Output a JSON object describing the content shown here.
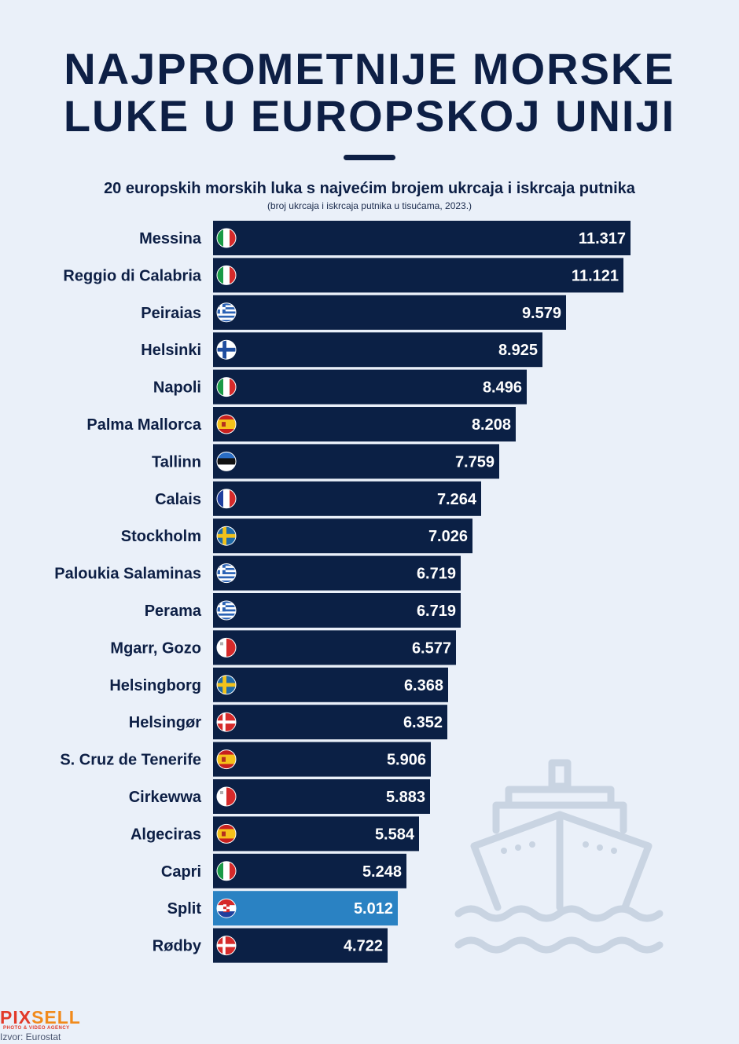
{
  "title": {
    "line1": "NAJPROMETNIJE MORSKE",
    "line2": "LUKE U EUROPSKOJ UNIJI"
  },
  "subtitle": "20 europskih morskih luka s najvećim brojem ukrcaja i iskrcaja putnika",
  "note": "(broj ukrcaja i iskrcaja putnika u tisućama, 2023.)",
  "logo": {
    "part1": "PIX",
    "part2": "SELL",
    "tagline": "PHOTO & VIDEO AGENCY"
  },
  "source": "Izvor: Eurostat",
  "colors": {
    "bar": "#0b2045",
    "highlight": "#2a82c3",
    "ship": "#c9d4e2"
  },
  "chart_data": {
    "type": "bar",
    "orientation": "horizontal",
    "categories": [
      "Messina",
      "Reggio di Calabria",
      "Peiraias",
      "Helsinki",
      "Napoli",
      "Palma Mallorca",
      "Tallinn",
      "Calais",
      "Stockholm",
      "Paloukia Salaminas",
      "Perama",
      "Mgarr, Gozo",
      "Helsingborg",
      "Helsingør",
      "S. Cruz de Tenerife",
      "Cirkewwa",
      "Algeciras",
      "Capri",
      "Split",
      "Rødby"
    ],
    "values": [
      11317,
      11121,
      9579,
      8925,
      8496,
      8208,
      7759,
      7264,
      7026,
      6719,
      6719,
      6577,
      6368,
      6352,
      5906,
      5883,
      5584,
      5248,
      5012,
      4722
    ],
    "value_labels": [
      "11.317",
      "11.121",
      "9.579",
      "8.925",
      "8.496",
      "8.208",
      "7.759",
      "7.264",
      "7.026",
      "6.719",
      "6.719",
      "6.577",
      "6.368",
      "6.352",
      "5.906",
      "5.883",
      "5.584",
      "5.248",
      "5.012",
      "4.722"
    ],
    "flags": [
      "italy",
      "italy",
      "greece",
      "finland",
      "italy",
      "spain",
      "estonia",
      "france",
      "sweden",
      "greece",
      "greece",
      "malta",
      "sweden",
      "denmark",
      "spain",
      "malta",
      "spain",
      "italy",
      "croatia",
      "denmark"
    ],
    "highlight": "Split",
    "xlim": [
      0,
      11317
    ],
    "grid": false,
    "legend": "none"
  }
}
